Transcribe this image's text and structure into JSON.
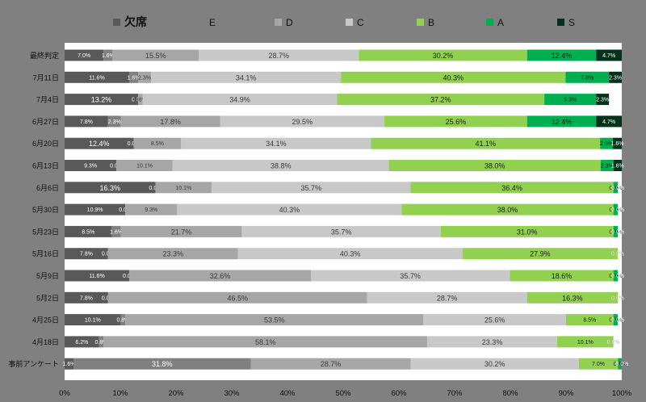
{
  "chart_data": {
    "type": "bar",
    "stacked": true,
    "horizontal": true,
    "legend_position": "top",
    "xlim": [
      0,
      100
    ],
    "x_ticks": [
      "0%",
      "10%",
      "20%",
      "30%",
      "40%",
      "50%",
      "60%",
      "70%",
      "80%",
      "90%",
      "100%"
    ],
    "categories": [
      "最終判定",
      "7月11日",
      "7月4日",
      "6月27日",
      "6月20日",
      "6月13日",
      "6月6日",
      "5月30日",
      "5月23日",
      "5月16日",
      "5月9日",
      "5月2日",
      "4月25日",
      "4月18日",
      "事前アンケート"
    ],
    "series": [
      {
        "name": "欠席",
        "color": "#595959",
        "label_color": "#ffffff",
        "values": [
          7.0,
          11.6,
          13.2,
          7.8,
          12.4,
          9.3,
          16.3,
          10.9,
          8.5,
          7.8,
          11.6,
          7.8,
          10.1,
          6.2,
          1.6
        ],
        "labels": [
          "7.0%",
          "11.6%",
          "13.2%",
          "7.8%",
          "12.4%",
          "9.3%",
          "16.3%",
          "10.9%",
          "8.5%",
          "7.8%",
          "11.6%",
          "7.8%",
          "10.1%",
          "6.2%",
          "1.6%"
        ]
      },
      {
        "name": "E",
        "color": "#808080",
        "label_color": "#ffffff",
        "values": [
          1.6,
          1.6,
          0.0,
          2.3,
          0.0,
          0.0,
          0.0,
          0.0,
          1.6,
          0.0,
          0.0,
          0.0,
          0.8,
          0.8,
          31.8
        ],
        "labels": [
          "1.6%",
          "1.6%",
          "0.0%",
          "2.3%",
          "0.0%",
          "0.0%",
          "0.0%",
          "0.0%",
          "1.6%",
          "0.0%",
          "0.0%",
          "0.0%",
          "0.8%",
          "0.8%",
          "31.8%"
        ]
      },
      {
        "name": "D",
        "color": "#a6a6a6",
        "label_color": "#3a3a3a",
        "values": [
          15.5,
          2.3,
          0.8,
          17.8,
          8.5,
          10.1,
          10.1,
          9.3,
          21.7,
          23.3,
          32.6,
          46.5,
          53.5,
          58.1,
          28.7
        ],
        "labels": [
          "15.5%",
          "2.3%",
          "0.8%",
          "17.8%",
          "8.5%",
          "10.1%",
          "10.1%",
          "9.3%",
          "21.7%",
          "23.3%",
          "32.6%",
          "46.5%",
          "53.5%",
          "58.1%",
          "28.7%"
        ]
      },
      {
        "name": "C",
        "color": "#c8c8c8",
        "label_color": "#3a3a3a",
        "values": [
          28.7,
          34.1,
          34.9,
          29.5,
          34.1,
          38.8,
          35.7,
          40.3,
          35.7,
          40.3,
          35.7,
          28.7,
          25.6,
          23.3,
          30.2
        ],
        "labels": [
          "28.7%",
          "34.1%",
          "34.9%",
          "29.5%",
          "34.1%",
          "38.8%",
          "35.7%",
          "40.3%",
          "35.7%",
          "40.3%",
          "35.7%",
          "28.7%",
          "25.6%",
          "23.3%",
          "30.2%"
        ]
      },
      {
        "name": "B",
        "color": "#92d050",
        "label_color": "#1a1a1a",
        "values": [
          30.2,
          40.3,
          37.2,
          25.6,
          41.1,
          38.0,
          36.4,
          38.0,
          31.0,
          27.9,
          18.6,
          16.3,
          8.5,
          10.1,
          7.0
        ],
        "labels": [
          "30.2%",
          "40.3%",
          "37.2%",
          "25.6%",
          "41.1%",
          "38.0%",
          "36.4%",
          "38.0%",
          "31.0%",
          "27.9%",
          "18.6%",
          "16.3%",
          "8.5%",
          "10.1%",
          "7.0%"
        ]
      },
      {
        "name": "A",
        "color": "#00b050",
        "label_color": "#1a1a1a",
        "values": [
          12.4,
          7.8,
          9.3,
          12.4,
          2.3,
          2.3,
          0.8,
          0.8,
          0.8,
          0.0,
          0.8,
          0.0,
          0.8,
          0.0,
          0.8
        ],
        "labels": [
          "12.4%",
          "7.8%",
          "9.3%",
          "12.4%",
          "2.3%",
          "2.3%",
          "0.8%",
          "0.8%",
          "0.8%",
          "0.0%",
          "0.8%",
          "0.0%",
          "0.8%",
          "0.0%",
          "0.8%"
        ]
      },
      {
        "name": "S",
        "color": "#00331a",
        "label_color": "#ffffff",
        "values": [
          4.7,
          2.3,
          2.3,
          4.7,
          1.6,
          1.6,
          0.0,
          0.0,
          0.0,
          0.0,
          0.0,
          0.0,
          0.0,
          0.0,
          0.0
        ],
        "labels": [
          "4.7%",
          "2.3%",
          "2.3%",
          "4.7%",
          "1.6%",
          "1.6%",
          "0.0%",
          "0.0%",
          "0.0%",
          "0.0%",
          "0.0%",
          "0.0%",
          "0.0%",
          "0.0%",
          "0.0%"
        ]
      }
    ]
  }
}
